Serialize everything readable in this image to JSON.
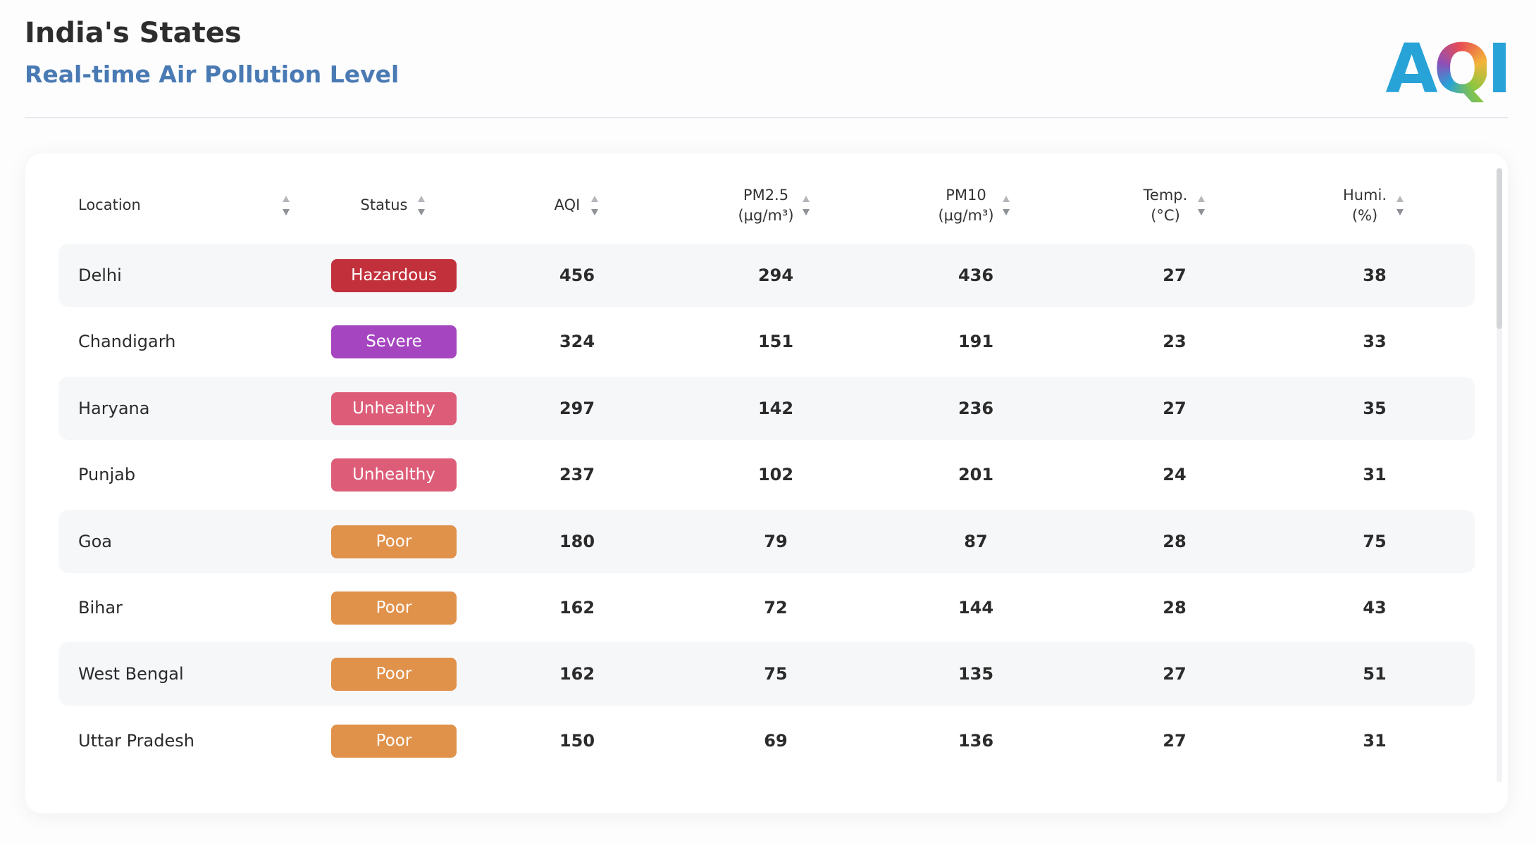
{
  "header": {
    "title": "India's States",
    "subtitle": "Real-time Air Pollution Level",
    "logo": "AQI"
  },
  "table": {
    "columns": [
      {
        "label": "Location"
      },
      {
        "label": "Status"
      },
      {
        "label": "AQI"
      },
      {
        "label": "PM2.5",
        "unit": "(µg/m³)"
      },
      {
        "label": "PM10",
        "unit": "(µg/m³)"
      },
      {
        "label": "Temp.",
        "unit": "(°C)"
      },
      {
        "label": "Humi.",
        "unit": "(%)"
      }
    ],
    "rows": [
      {
        "cells": [
          "Delhi",
          "Hazardous",
          "456",
          "294",
          "436",
          "27",
          "38"
        ],
        "status_color": "#c2313b"
      },
      {
        "cells": [
          "Chandigarh",
          "Severe",
          "324",
          "151",
          "191",
          "23",
          "33"
        ],
        "status_color": "#a545c0"
      },
      {
        "cells": [
          "Haryana",
          "Unhealthy",
          "297",
          "142",
          "236",
          "27",
          "35"
        ],
        "status_color": "#dd5d78"
      },
      {
        "cells": [
          "Punjab",
          "Unhealthy",
          "237",
          "102",
          "201",
          "24",
          "31"
        ],
        "status_color": "#dd5d78"
      },
      {
        "cells": [
          "Goa",
          "Poor",
          "180",
          "79",
          "87",
          "28",
          "75"
        ],
        "status_color": "#e0914a"
      },
      {
        "cells": [
          "Bihar",
          "Poor",
          "162",
          "72",
          "144",
          "28",
          "43"
        ],
        "status_color": "#e0914a"
      },
      {
        "cells": [
          "West Bengal",
          "Poor",
          "162",
          "75",
          "135",
          "27",
          "51"
        ],
        "status_color": "#e0914a"
      },
      {
        "cells": [
          "Uttar Pradesh",
          "Poor",
          "150",
          "69",
          "136",
          "27",
          "31"
        ],
        "status_color": "#e0914a"
      }
    ]
  }
}
